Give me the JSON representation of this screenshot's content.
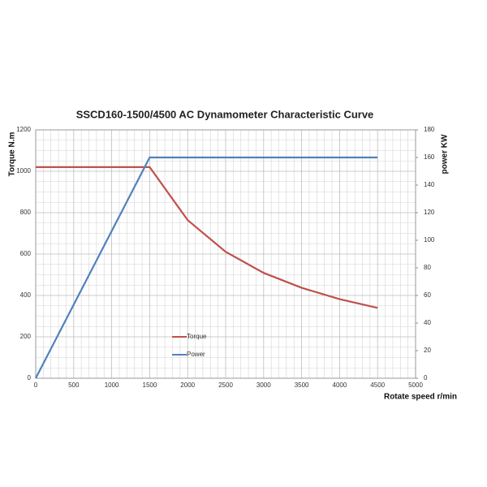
{
  "chart_data": {
    "type": "line",
    "title": "SSCD160-1500/4500 AC Dynamometer Characteristic Curve",
    "y_label": "Torque N.m",
    "y2_label": "power KW",
    "x_label": "Rotate speed r/min",
    "x": [
      0,
      1500,
      2000,
      2500,
      3000,
      3500,
      4000,
      4500
    ],
    "series": [
      {
        "name": "Torque",
        "color": "#c0504d",
        "values": [
          1020,
          1020,
          764,
          611,
          509,
          437,
          382,
          340
        ]
      },
      {
        "name": "Power",
        "color": "#4f81bd",
        "axis": "y2",
        "values": [
          0,
          160,
          160,
          160,
          160,
          160,
          160,
          160
        ]
      }
    ],
    "xlim": [
      0,
      5000
    ],
    "xticks": [
      0,
      500,
      1000,
      1500,
      2000,
      2500,
      3000,
      3500,
      4000,
      4500,
      5000
    ],
    "ylim": [
      0,
      1200
    ],
    "yticks": [
      0,
      200,
      400,
      600,
      800,
      1000,
      1200
    ],
    "y2lim": [
      0,
      180
    ],
    "y2ticks": [
      0,
      20,
      40,
      60,
      80,
      100,
      120,
      140,
      160,
      180
    ],
    "grid": true
  }
}
